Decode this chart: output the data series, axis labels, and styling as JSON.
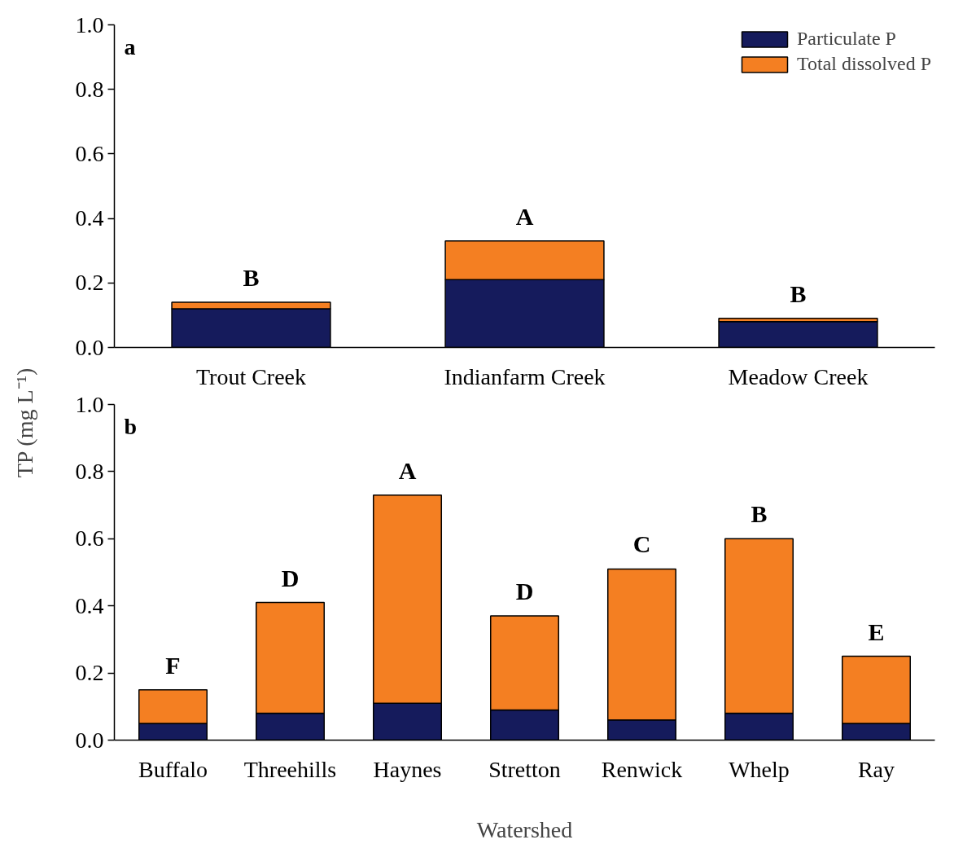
{
  "chart_data": [
    {
      "type": "bar",
      "stacked": true,
      "ylabel": "TP (mg L⁻¹)",
      "categories": [
        "Trout Creek",
        "Indianfarm Creek",
        "Meadow Creek"
      ],
      "series": [
        {
          "name": "Particulate P",
          "color": "#151b5c",
          "values": [
            0.12,
            0.21,
            0.08
          ]
        },
        {
          "name": "Total dissolved P",
          "color": "#f47f22",
          "values": [
            0.02,
            0.12,
            0.01
          ]
        }
      ],
      "ylim": [
        0,
        1.0
      ],
      "yticks": [
        {
          "value": 0,
          "label": "0.0"
        },
        {
          "value": 0.2,
          "label": "0.2"
        },
        {
          "value": 0.4,
          "label": "0.4"
        },
        {
          "value": 0.6,
          "label": "0.6"
        },
        {
          "value": 0.8,
          "label": "0.8"
        },
        {
          "value": 1.0,
          "label": "1.0"
        }
      ],
      "grid": false,
      "legend": "top right",
      "annotations": [
        "a",
        {
          "text": "B",
          "x": "Trout Creek",
          "y": 0.14
        },
        {
          "text": "A",
          "x": "Indianfarm Creek",
          "y": 0.33
        },
        {
          "text": "B",
          "x": "Meadow Creek",
          "y": 0.09
        }
      ]
    },
    {
      "type": "bar",
      "stacked": true,
      "xlabel": "Watershed",
      "categories": [
        "Buffalo",
        "Threehills",
        "Haynes",
        "Stretton",
        "Renwick",
        "Whelp",
        "Ray"
      ],
      "series": [
        {
          "color": "#151b5c",
          "values": [
            0.05,
            0.08,
            0.11,
            0.09,
            0.06,
            0.08,
            0.05
          ]
        },
        {
          "color": "#f47f22",
          "values": [
            0.1,
            0.33,
            0.62,
            0.28,
            0.45,
            0.52,
            0.2
          ]
        }
      ],
      "ylim": [
        0,
        1.0
      ],
      "yticks": [
        {
          "value": 0,
          "label": "0.0"
        },
        {
          "value": 0.2,
          "label": "0.2"
        },
        {
          "value": 0.4,
          "label": "0.4"
        },
        {
          "value": 0.6,
          "label": "0.6"
        },
        {
          "value": 0.8,
          "label": "0.8"
        },
        {
          "value": 1.0,
          "label": "1.0"
        }
      ],
      "grid": false,
      "legend": false,
      "annotations": [
        "b",
        {
          "text": "F",
          "x": "Buffalo",
          "y": 0.15
        },
        {
          "text": "D",
          "x": "Threehills",
          "y": 0.41
        },
        {
          "text": "A",
          "x": "Haynes",
          "y": 0.73
        },
        {
          "text": "D",
          "x": "Stretton",
          "y": 0.37
        },
        {
          "text": "C",
          "x": "Renwick",
          "y": 0.51
        },
        {
          "text": "B",
          "x": "Whelp",
          "y": 0.6
        },
        {
          "text": "E",
          "x": "Ray",
          "y": 0.25
        }
      ]
    }
  ]
}
